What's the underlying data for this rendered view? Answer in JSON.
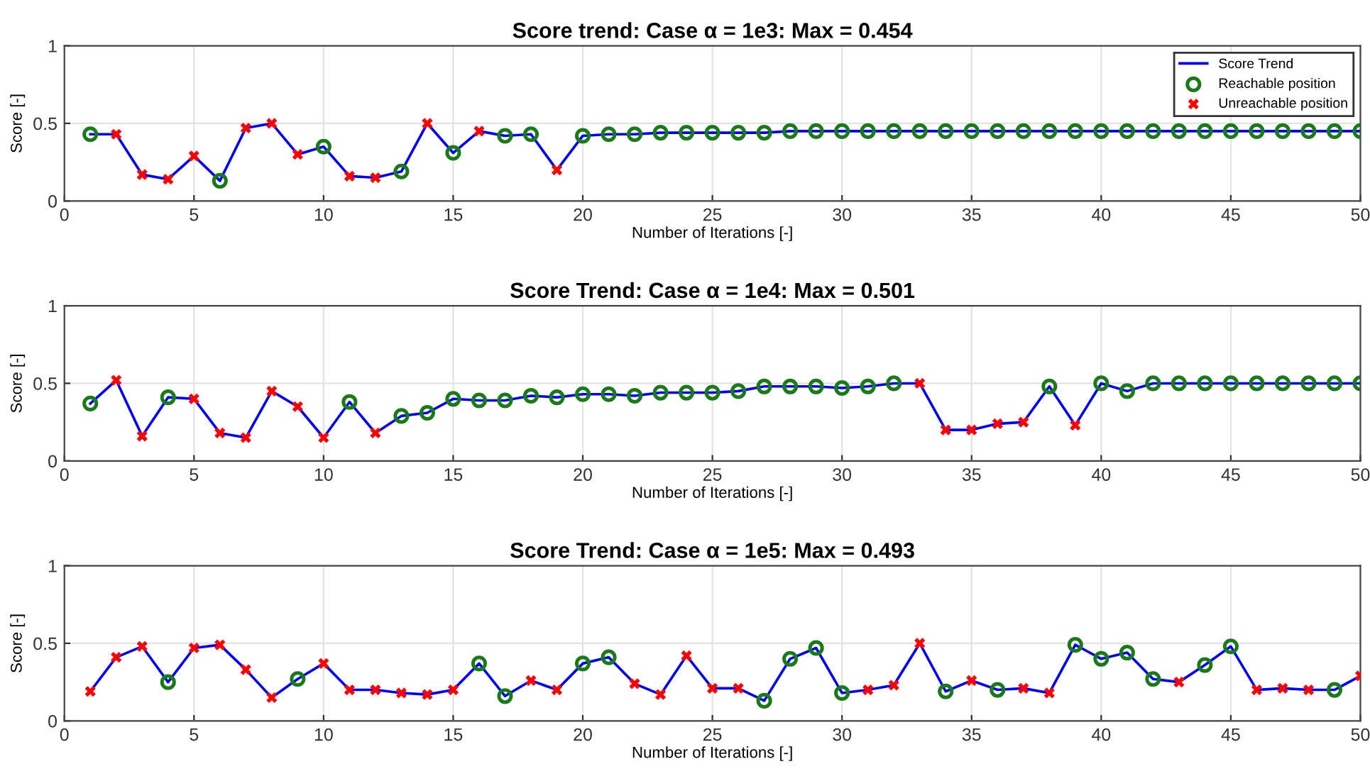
{
  "chart_data": [
    {
      "type": "line",
      "title": "Score trend: Case α = 1e3: Max = 0.454",
      "xlabel": "Number of Iterations [-]",
      "ylabel": "Score [-]",
      "xlim": [
        0,
        50
      ],
      "xticks": [
        0,
        5,
        10,
        15,
        20,
        25,
        30,
        35,
        40,
        45,
        50
      ],
      "ylim": [
        0,
        1
      ],
      "yticks": [
        0,
        0.5,
        1
      ],
      "grid": true,
      "legend": "top right",
      "x": [
        1,
        2,
        3,
        4,
        5,
        6,
        7,
        8,
        9,
        10,
        11,
        12,
        13,
        14,
        15,
        16,
        17,
        18,
        19,
        20,
        21,
        22,
        23,
        24,
        25,
        26,
        27,
        28,
        29,
        30,
        31,
        32,
        33,
        34,
        35,
        36,
        37,
        38,
        39,
        40,
        41,
        42,
        43,
        44,
        45,
        46,
        47,
        48,
        49,
        50
      ],
      "series": [
        {
          "name": "Score Trend",
          "color": "#0000ff",
          "marker": "none",
          "values": [
            0.43,
            0.43,
            0.17,
            0.14,
            0.29,
            0.13,
            0.47,
            0.5,
            0.3,
            0.35,
            0.16,
            0.15,
            0.19,
            0.5,
            0.31,
            0.45,
            0.42,
            0.43,
            0.2,
            0.42,
            0.43,
            0.43,
            0.44,
            0.44,
            0.44,
            0.44,
            0.44,
            0.45,
            0.45,
            0.45,
            0.45,
            0.45,
            0.45,
            0.45,
            0.45,
            0.45,
            0.45,
            0.45,
            0.45,
            0.45,
            0.45,
            0.45,
            0.45,
            0.45,
            0.45,
            0.45,
            0.45,
            0.45,
            0.45,
            0.45
          ]
        },
        {
          "name": "Reachable position",
          "type": "scatter",
          "color": "#1a7a1a",
          "marker": "circle",
          "x": [
            1,
            6,
            10,
            13,
            15,
            17,
            18,
            20,
            21,
            22,
            23,
            24,
            25,
            26,
            27,
            28,
            29,
            30,
            31,
            32,
            33,
            34,
            35,
            36,
            37,
            38,
            39,
            40,
            41,
            42,
            43,
            44,
            45,
            46,
            47,
            48,
            49,
            50
          ],
          "values": [
            0.43,
            0.13,
            0.35,
            0.19,
            0.31,
            0.42,
            0.43,
            0.42,
            0.43,
            0.43,
            0.44,
            0.44,
            0.44,
            0.44,
            0.44,
            0.45,
            0.45,
            0.45,
            0.45,
            0.45,
            0.45,
            0.45,
            0.45,
            0.45,
            0.45,
            0.45,
            0.45,
            0.45,
            0.45,
            0.45,
            0.45,
            0.45,
            0.45,
            0.45,
            0.45,
            0.45,
            0.45,
            0.45
          ]
        },
        {
          "name": "Unreachable position",
          "type": "scatter",
          "color": "#ff0000",
          "marker": "cross",
          "x": [
            2,
            3,
            4,
            5,
            7,
            8,
            9,
            11,
            12,
            14,
            16,
            19
          ],
          "values": [
            0.43,
            0.17,
            0.14,
            0.29,
            0.47,
            0.5,
            0.3,
            0.16,
            0.15,
            0.5,
            0.45,
            0.2
          ]
        }
      ]
    },
    {
      "type": "line",
      "title": "Score Trend: Case α = 1e4: Max = 0.501",
      "xlabel": "Number of Iterations [-]",
      "ylabel": "Score [-]",
      "xlim": [
        0,
        50
      ],
      "xticks": [
        0,
        5,
        10,
        15,
        20,
        25,
        30,
        35,
        40,
        45,
        50
      ],
      "ylim": [
        0,
        1
      ],
      "yticks": [
        0,
        0.5,
        1
      ],
      "grid": true,
      "x": [
        1,
        2,
        3,
        4,
        5,
        6,
        7,
        8,
        9,
        10,
        11,
        12,
        13,
        14,
        15,
        16,
        17,
        18,
        19,
        20,
        21,
        22,
        23,
        24,
        25,
        26,
        27,
        28,
        29,
        30,
        31,
        32,
        33,
        34,
        35,
        36,
        37,
        38,
        39,
        40,
        41,
        42,
        43,
        44,
        45,
        46,
        47,
        48,
        49,
        50
      ],
      "series": [
        {
          "color": "#0000ff",
          "marker": "none",
          "values": [
            0.37,
            0.52,
            0.16,
            0.41,
            0.4,
            0.18,
            0.15,
            0.45,
            0.35,
            0.15,
            0.38,
            0.18,
            0.29,
            0.31,
            0.4,
            0.39,
            0.39,
            0.42,
            0.41,
            0.43,
            0.43,
            0.42,
            0.44,
            0.44,
            0.44,
            0.45,
            0.48,
            0.48,
            0.48,
            0.47,
            0.48,
            0.5,
            0.5,
            0.2,
            0.2,
            0.24,
            0.25,
            0.48,
            0.23,
            0.5,
            0.45,
            0.5,
            0.5,
            0.5,
            0.5,
            0.5,
            0.5,
            0.5,
            0.5,
            0.5
          ]
        },
        {
          "type": "scatter",
          "color": "#1a7a1a",
          "marker": "circle",
          "x": [
            1,
            4,
            11,
            13,
            14,
            15,
            16,
            17,
            18,
            19,
            20,
            21,
            22,
            23,
            24,
            25,
            26,
            27,
            28,
            29,
            30,
            31,
            32,
            38,
            40,
            41,
            42,
            43,
            44,
            45,
            46,
            47,
            48,
            49,
            50
          ],
          "values": [
            0.37,
            0.41,
            0.38,
            0.29,
            0.31,
            0.4,
            0.39,
            0.39,
            0.42,
            0.41,
            0.43,
            0.43,
            0.42,
            0.44,
            0.44,
            0.44,
            0.45,
            0.48,
            0.48,
            0.48,
            0.47,
            0.48,
            0.5,
            0.48,
            0.5,
            0.45,
            0.5,
            0.5,
            0.5,
            0.5,
            0.5,
            0.5,
            0.5,
            0.5,
            0.5
          ]
        },
        {
          "type": "scatter",
          "color": "#ff0000",
          "marker": "cross",
          "x": [
            2,
            3,
            5,
            6,
            7,
            8,
            9,
            10,
            12,
            33,
            34,
            35,
            36,
            37,
            39
          ],
          "values": [
            0.52,
            0.16,
            0.4,
            0.18,
            0.15,
            0.45,
            0.35,
            0.15,
            0.18,
            0.5,
            0.2,
            0.2,
            0.24,
            0.25,
            0.23
          ]
        }
      ]
    },
    {
      "type": "line",
      "title": "Score Trend: Case α = 1e5: Max = 0.493",
      "xlabel": "Number of Iterations [-]",
      "ylabel": "Score [-]",
      "xlim": [
        0,
        50
      ],
      "xticks": [
        0,
        5,
        10,
        15,
        20,
        25,
        30,
        35,
        40,
        45,
        50
      ],
      "ylim": [
        0,
        1
      ],
      "yticks": [
        0,
        0.5,
        1
      ],
      "grid": true,
      "x": [
        1,
        2,
        3,
        4,
        5,
        6,
        7,
        8,
        9,
        10,
        11,
        12,
        13,
        14,
        15,
        16,
        17,
        18,
        19,
        20,
        21,
        22,
        23,
        24,
        25,
        26,
        27,
        28,
        29,
        30,
        31,
        32,
        33,
        34,
        35,
        36,
        37,
        38,
        39,
        40,
        41,
        42,
        43,
        44,
        45,
        46,
        47,
        48,
        49,
        50
      ],
      "series": [
        {
          "color": "#0000ff",
          "marker": "none",
          "values": [
            0.19,
            0.41,
            0.48,
            0.25,
            0.47,
            0.49,
            0.33,
            0.15,
            0.27,
            0.37,
            0.2,
            0.2,
            0.18,
            0.17,
            0.2,
            0.37,
            0.16,
            0.26,
            0.2,
            0.37,
            0.41,
            0.24,
            0.17,
            0.42,
            0.21,
            0.21,
            0.13,
            0.4,
            0.47,
            0.18,
            0.2,
            0.23,
            0.5,
            0.19,
            0.26,
            0.2,
            0.21,
            0.18,
            0.49,
            0.4,
            0.44,
            0.27,
            0.25,
            0.36,
            0.48,
            0.2,
            0.21,
            0.2,
            0.2,
            0.29
          ]
        },
        {
          "type": "scatter",
          "color": "#1a7a1a",
          "marker": "circle",
          "x": [
            4,
            9,
            16,
            17,
            20,
            21,
            27,
            28,
            29,
            30,
            34,
            36,
            39,
            40,
            41,
            42,
            44,
            45,
            49
          ],
          "values": [
            0.25,
            0.27,
            0.37,
            0.16,
            0.37,
            0.41,
            0.13,
            0.4,
            0.47,
            0.18,
            0.19,
            0.2,
            0.49,
            0.4,
            0.44,
            0.27,
            0.36,
            0.48,
            0.2
          ]
        },
        {
          "type": "scatter",
          "color": "#ff0000",
          "marker": "cross",
          "x": [
            1,
            2,
            3,
            5,
            6,
            7,
            8,
            10,
            11,
            12,
            13,
            14,
            15,
            18,
            19,
            22,
            23,
            24,
            25,
            26,
            31,
            32,
            33,
            35,
            37,
            38,
            43,
            46,
            47,
            48,
            50
          ],
          "values": [
            0.19,
            0.41,
            0.48,
            0.47,
            0.49,
            0.33,
            0.15,
            0.37,
            0.2,
            0.2,
            0.18,
            0.17,
            0.2,
            0.26,
            0.2,
            0.24,
            0.17,
            0.42,
            0.21,
            0.21,
            0.2,
            0.23,
            0.5,
            0.26,
            0.21,
            0.18,
            0.25,
            0.2,
            0.21,
            0.2,
            0.29
          ]
        }
      ]
    }
  ]
}
